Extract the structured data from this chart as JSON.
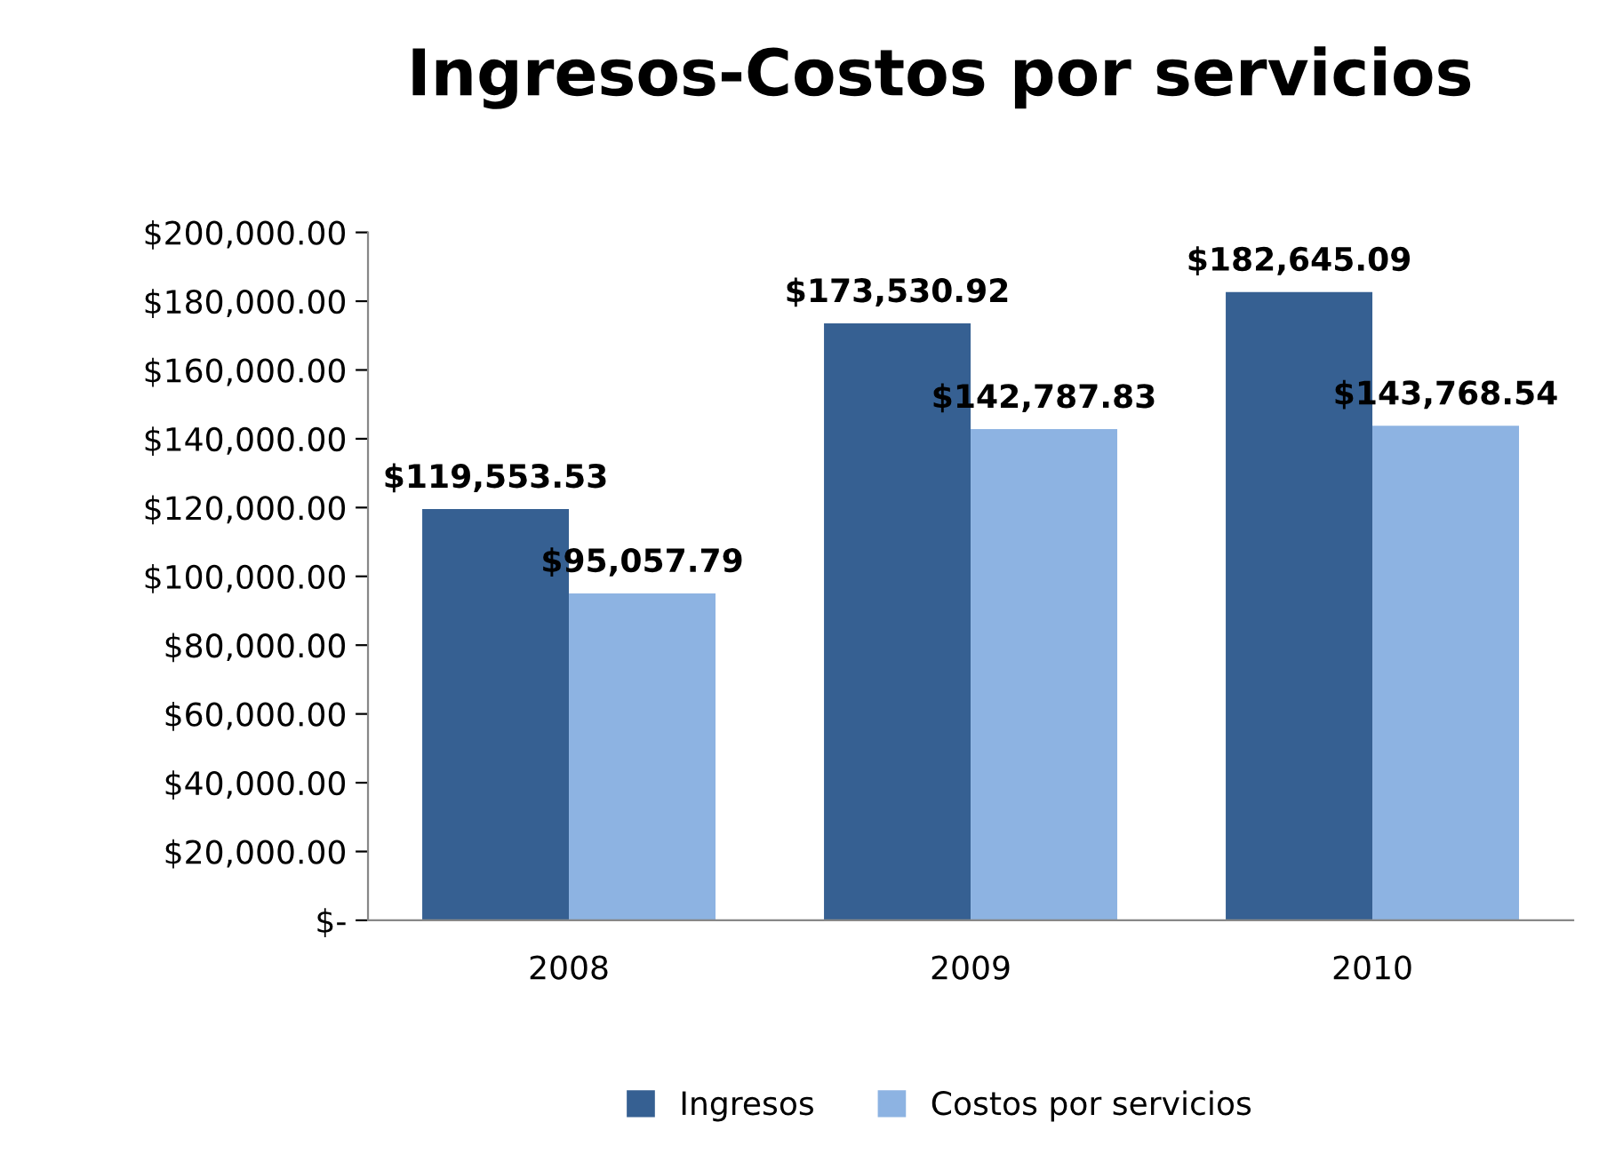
{
  "chart_data": {
    "type": "bar",
    "title": "Ingresos-Costos por servicios",
    "categories": [
      "2008",
      "2009",
      "2010"
    ],
    "series": [
      {
        "name": "Ingresos",
        "color": "#366092",
        "values": [
          119553.53,
          173530.92,
          182645.09
        ],
        "value_labels": [
          "$119,553.53",
          "$173,530.92",
          "$182,645.09"
        ]
      },
      {
        "name": "Costos por servicios",
        "color": "#8db3e2",
        "values": [
          95057.79,
          142787.83,
          143768.54
        ],
        "value_labels": [
          "$95,057.79",
          "$142,787.83",
          "$143,768.54"
        ]
      }
    ],
    "ylim": [
      0,
      200000
    ],
    "yticks": [
      {
        "value": 0,
        "label": "$-"
      },
      {
        "value": 20000,
        "label": "$20,000.00"
      },
      {
        "value": 40000,
        "label": "$40,000.00"
      },
      {
        "value": 60000,
        "label": "$60,000.00"
      },
      {
        "value": 80000,
        "label": "$80,000.00"
      },
      {
        "value": 100000,
        "label": "$100,000.00"
      },
      {
        "value": 120000,
        "label": "$120,000.00"
      },
      {
        "value": 140000,
        "label": "$140,000.00"
      },
      {
        "value": 160000,
        "label": "$160,000.00"
      },
      {
        "value": 180000,
        "label": "$180,000.00"
      },
      {
        "value": 200000,
        "label": "$200,000.00"
      }
    ],
    "grid": false,
    "legend": "bottom"
  }
}
